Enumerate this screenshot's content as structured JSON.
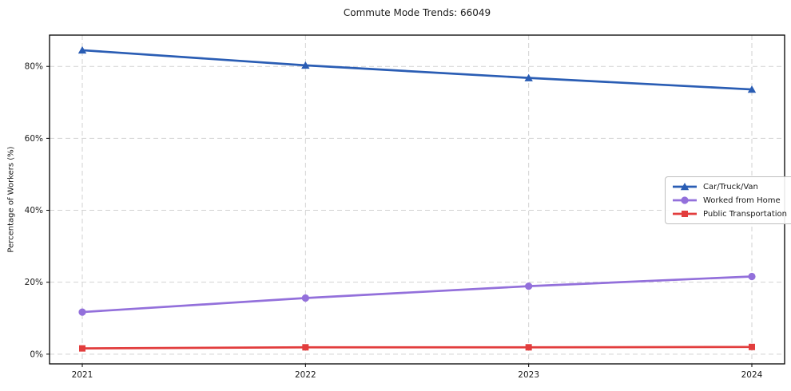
{
  "chart_data": {
    "type": "line",
    "title": "Commute Mode Trends: 66049",
    "xlabel": "",
    "ylabel": "Percentage of Workers (%)",
    "categories": [
      "2021",
      "2022",
      "2023",
      "2024"
    ],
    "series": [
      {
        "name": "Car/Truck/Van",
        "color": "#2a5db4",
        "marker": "triangle",
        "values": [
          84.5,
          80.3,
          76.8,
          73.6
        ]
      },
      {
        "name": "Worked from Home",
        "color": "#9370db",
        "marker": "circle",
        "values": [
          11.7,
          15.6,
          18.9,
          21.6
        ]
      },
      {
        "name": "Public Transportation",
        "color": "#e23d3d",
        "marker": "square",
        "values": [
          1.6,
          1.9,
          1.9,
          2.0
        ]
      }
    ],
    "yticks": [
      0,
      20,
      40,
      60,
      80
    ],
    "ytick_labels": [
      "0%",
      "20%",
      "40%",
      "60%",
      "80%"
    ],
    "ylim": [
      -2.7,
      88.7
    ],
    "grid": true,
    "grid_style": "dashed",
    "legend_position": "center-right"
  }
}
